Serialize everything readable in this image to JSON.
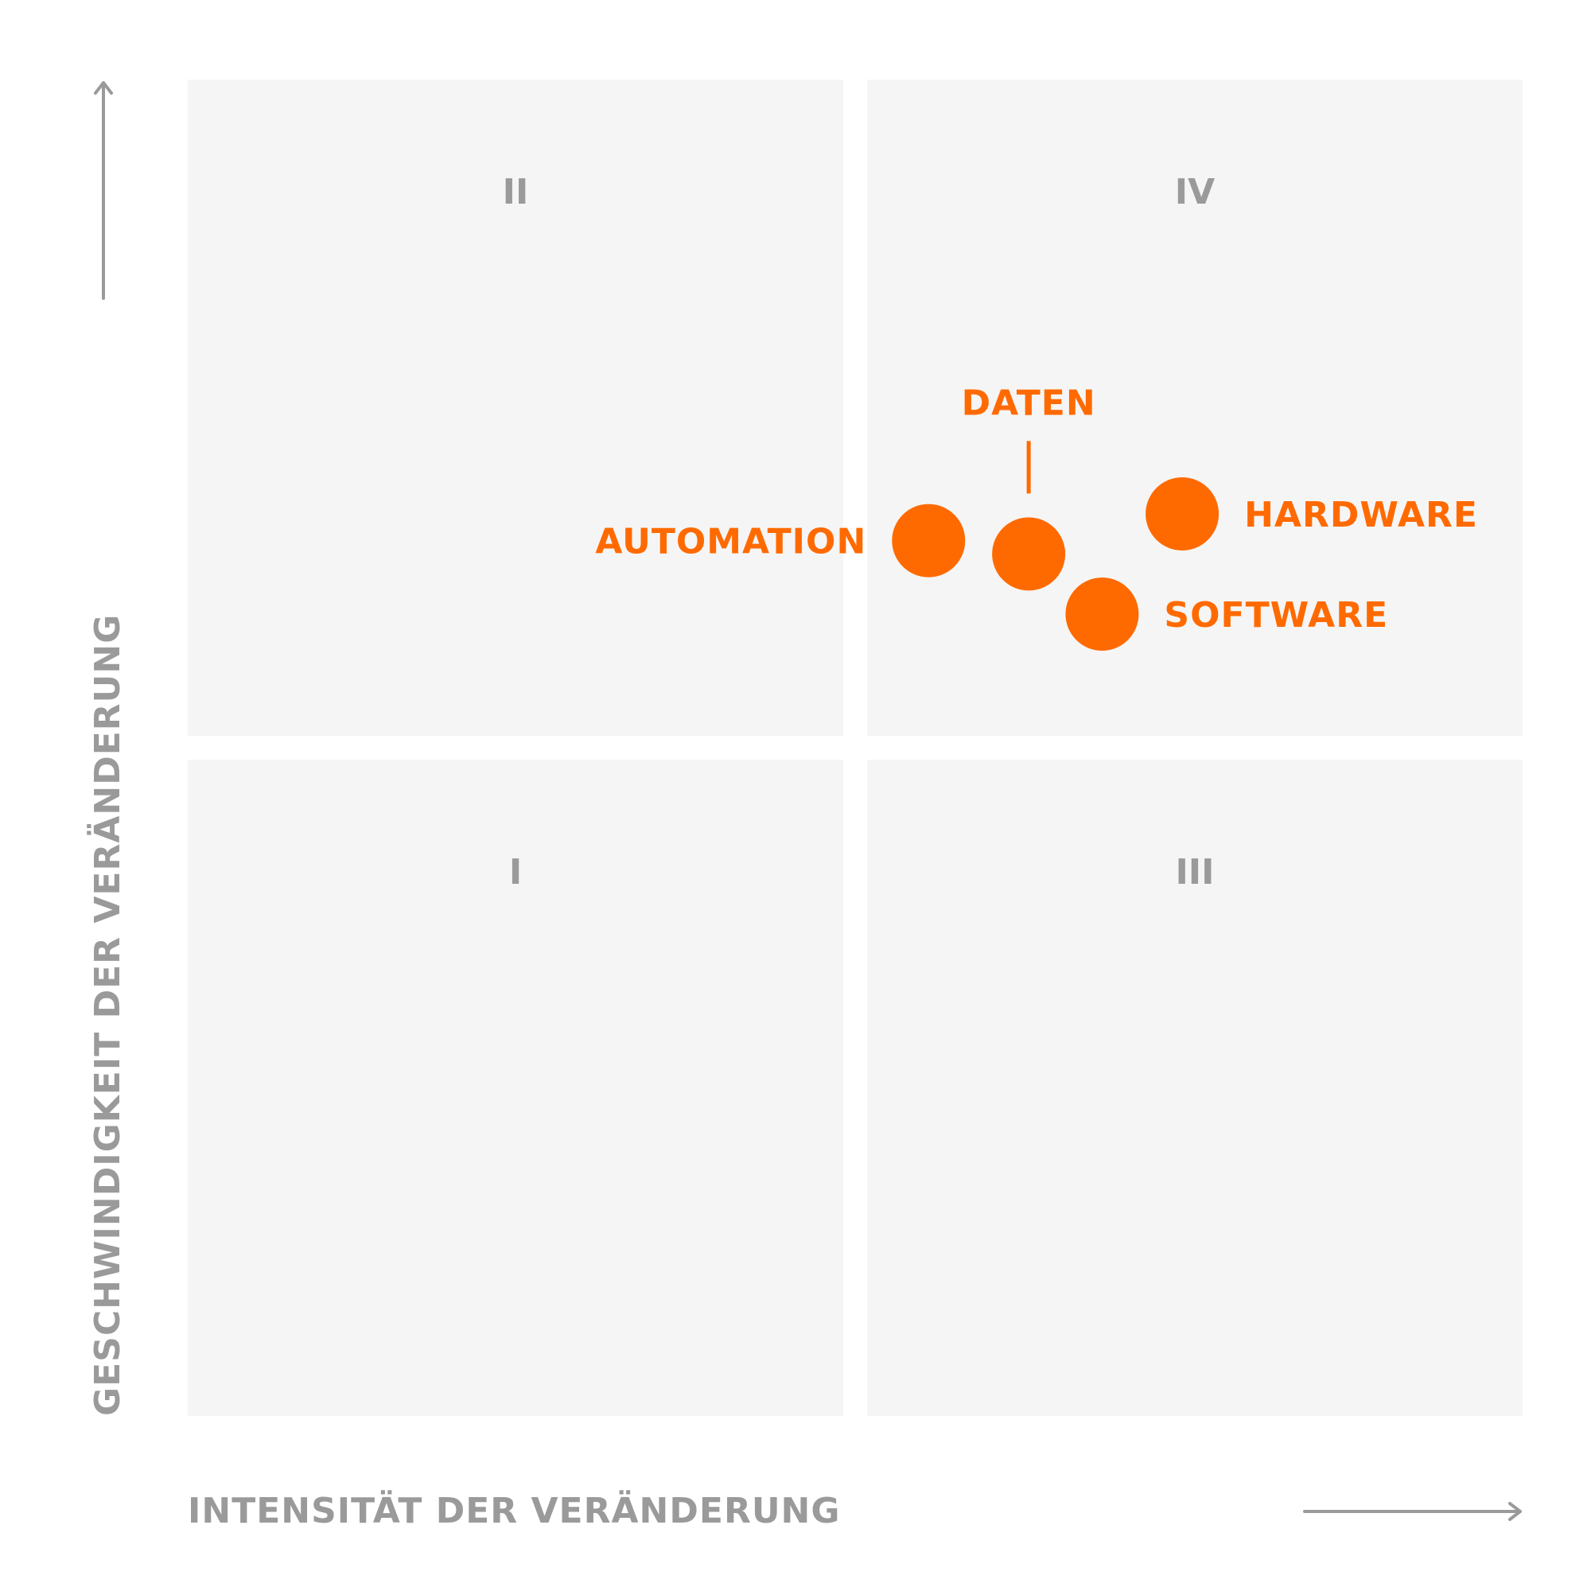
{
  "chart_data": {
    "type": "scatter",
    "title": "",
    "xlabel": "INTENSITÄT DER VERÄNDERUNG",
    "ylabel": "GESCHWINDIGKEIT DER VERÄNDERUNG",
    "xlim": [
      0,
      2
    ],
    "ylim": [
      0,
      2
    ],
    "grid": false,
    "quadrants": [
      {
        "label": "I",
        "col": 0,
        "row": 0
      },
      {
        "label": "II",
        "col": 0,
        "row": 1
      },
      {
        "label": "III",
        "col": 1,
        "row": 0
      },
      {
        "label": "IV",
        "col": 1,
        "row": 1
      }
    ],
    "points": [
      {
        "name": "AUTOMATION",
        "x": 1.11,
        "y": 1.31,
        "label_side": "left"
      },
      {
        "name": "DATEN",
        "x": 1.26,
        "y": 1.29,
        "label_side": "top"
      },
      {
        "name": "SOFTWARE",
        "x": 1.37,
        "y": 1.2,
        "label_side": "right"
      },
      {
        "name": "HARDWARE",
        "x": 1.49,
        "y": 1.35,
        "label_side": "right"
      }
    ],
    "colors": {
      "point": "#ff6a00",
      "quadrant": "#f5f5f5",
      "text": "#9a9a9a"
    }
  }
}
